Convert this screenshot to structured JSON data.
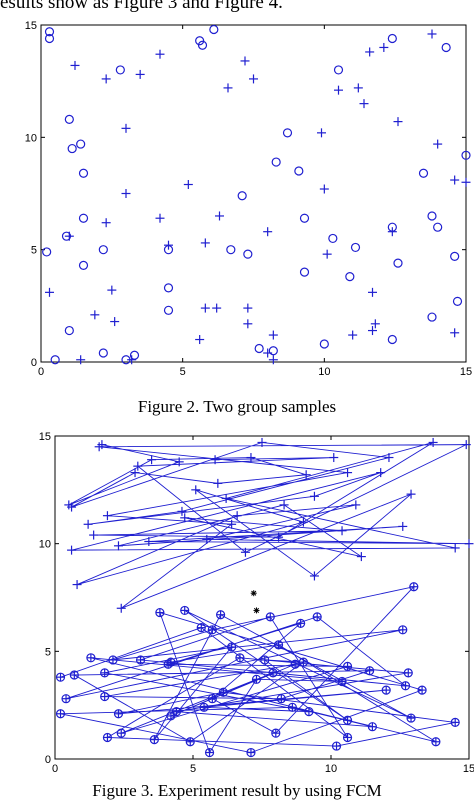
{
  "header_fragment": "esults show as Figure 3 and Figure 4.",
  "figure2": {
    "caption": "Figure 2. Two group samples"
  },
  "figure3": {
    "caption": "Figure 3. Experiment result by using FCM"
  },
  "chart_data": [
    {
      "type": "scatter",
      "title": "",
      "xlabel": "",
      "ylabel": "",
      "xlim": [
        0,
        15
      ],
      "ylim": [
        0,
        15
      ],
      "xticks": [
        "0",
        "5",
        "10",
        "15"
      ],
      "yticks": [
        "0",
        "5",
        "10",
        "15"
      ],
      "series": [
        {
          "marker": "circle",
          "color": "#1f1fd0",
          "points": [
            [
              0.3,
              14.7
            ],
            [
              0.3,
              14.4
            ],
            [
              5.6,
              14.3
            ],
            [
              5.7,
              14.1
            ],
            [
              6.1,
              14.8
            ],
            [
              2.8,
              13.0
            ],
            [
              10.5,
              13.0
            ],
            [
              12.4,
              14.4
            ],
            [
              14.3,
              14.0
            ],
            [
              1.0,
              10.8
            ],
            [
              1.1,
              9.5
            ],
            [
              1.4,
              9.7
            ],
            [
              1.5,
              8.4
            ],
            [
              8.3,
              8.9
            ],
            [
              8.7,
              10.2
            ],
            [
              9.1,
              8.5
            ],
            [
              9.3,
              6.4
            ],
            [
              9.3,
              4.0
            ],
            [
              13.5,
              8.4
            ],
            [
              14.0,
              6.0
            ],
            [
              13.8,
              6.5
            ],
            [
              15.0,
              9.2
            ],
            [
              1.5,
              6.4
            ],
            [
              0.9,
              5.6
            ],
            [
              0.2,
              4.9
            ],
            [
              1.5,
              4.3
            ],
            [
              7.1,
              7.4
            ],
            [
              7.3,
              4.8
            ],
            [
              4.5,
              5.0
            ],
            [
              4.5,
              3.3
            ],
            [
              4.5,
              2.3
            ],
            [
              6.7,
              5.0
            ],
            [
              2.2,
              5.0
            ],
            [
              2.2,
              0.4
            ],
            [
              3.0,
              0.1
            ],
            [
              3.3,
              0.3
            ],
            [
              0.5,
              0.1
            ],
            [
              1.0,
              1.4
            ],
            [
              7.7,
              0.6
            ],
            [
              8.2,
              0.5
            ],
            [
              10.0,
              0.8
            ],
            [
              10.3,
              5.5
            ],
            [
              10.9,
              3.8
            ],
            [
              11.1,
              5.1
            ],
            [
              12.4,
              6.0
            ],
            [
              12.6,
              4.4
            ],
            [
              12.4,
              1.0
            ],
            [
              13.8,
              2.0
            ],
            [
              14.6,
              4.7
            ],
            [
              14.7,
              2.7
            ]
          ]
        },
        {
          "marker": "plus",
          "color": "#1f1fd0",
          "points": [
            [
              1.2,
              13.2
            ],
            [
              2.3,
              12.6
            ],
            [
              3.5,
              12.8
            ],
            [
              4.2,
              13.7
            ],
            [
              7.2,
              13.4
            ],
            [
              7.5,
              12.6
            ],
            [
              6.6,
              12.2
            ],
            [
              10.5,
              12.1
            ],
            [
              11.2,
              12.2
            ],
            [
              11.4,
              11.5
            ],
            [
              11.6,
              13.8
            ],
            [
              12.1,
              14.0
            ],
            [
              13.8,
              14.6
            ],
            [
              3.0,
              10.4
            ],
            [
              9.9,
              10.2
            ],
            [
              10.0,
              7.7
            ],
            [
              12.6,
              10.7
            ],
            [
              14.0,
              9.7
            ],
            [
              14.6,
              8.1
            ],
            [
              15.0,
              8.0
            ],
            [
              3.0,
              7.5
            ],
            [
              4.2,
              6.4
            ],
            [
              6.3,
              6.5
            ],
            [
              5.2,
              7.9
            ],
            [
              2.3,
              6.2
            ],
            [
              1.0,
              5.6
            ],
            [
              4.5,
              5.2
            ],
            [
              5.8,
              5.3
            ],
            [
              8.0,
              5.8
            ],
            [
              10.1,
              4.8
            ],
            [
              12.4,
              5.8
            ],
            [
              0.3,
              3.1
            ],
            [
              2.5,
              3.2
            ],
            [
              1.9,
              2.1
            ],
            [
              2.6,
              1.8
            ],
            [
              5.8,
              2.4
            ],
            [
              6.2,
              2.4
            ],
            [
              7.3,
              2.4
            ],
            [
              7.3,
              1.7
            ],
            [
              8.2,
              1.2
            ],
            [
              5.6,
              1.0
            ],
            [
              8.0,
              0.4
            ],
            [
              8.2,
              0.1
            ],
            [
              3.2,
              0.1
            ],
            [
              1.4,
              0.1
            ],
            [
              11.0,
              1.2
            ],
            [
              11.7,
              1.4
            ],
            [
              11.8,
              1.7
            ],
            [
              11.7,
              3.1
            ],
            [
              14.6,
              1.3
            ]
          ]
        }
      ]
    },
    {
      "type": "line",
      "title": "",
      "xlabel": "",
      "ylabel": "",
      "xlim": [
        0,
        15
      ],
      "ylim": [
        0,
        15
      ],
      "xticks": [
        "0",
        "5",
        "10",
        "15"
      ],
      "yticks": [
        "0",
        "5",
        "10",
        "15"
      ],
      "centers": [
        [
          7.2,
          7.7
        ],
        [
          7.3,
          6.9
        ]
      ],
      "series": [
        {
          "marker": "plus",
          "color": "#1f1fd0",
          "path": [
            [
              1.7,
              14.6
            ],
            [
              4.5,
              13.8
            ],
            [
              0.5,
              11.8
            ],
            [
              3.5,
              13.9
            ],
            [
              7.1,
              14.0
            ],
            [
              9.1,
              13.2
            ],
            [
              5.9,
              12.8
            ],
            [
              2.9,
              13.3
            ],
            [
              0.6,
              11.7
            ],
            [
              7.5,
              14.7
            ],
            [
              12.1,
              14.0
            ],
            [
              4.6,
              11.5
            ],
            [
              1.2,
              10.9
            ],
            [
              9.4,
              12.2
            ],
            [
              11.8,
              13.3
            ],
            [
              0.6,
              9.7
            ],
            [
              14.5,
              9.8
            ],
            [
              6.2,
              12.1
            ],
            [
              13.7,
              14.7
            ],
            [
              8.1,
              10.3
            ],
            [
              1.4,
              10.4
            ],
            [
              10.4,
              10.6
            ],
            [
              4.7,
              11.2
            ],
            [
              11.1,
              9.4
            ],
            [
              8.3,
              11.8
            ],
            [
              2.3,
              9.9
            ],
            [
              12.6,
              10.8
            ],
            [
              3.4,
              10.1
            ],
            [
              15.0,
              10.0
            ],
            [
              5.5,
              10.2
            ],
            [
              10.9,
              11.8
            ],
            [
              6.6,
              11.3
            ],
            [
              0.8,
              8.1
            ],
            [
              9.0,
              11.0
            ],
            [
              5.1,
              12.5
            ],
            [
              9.4,
              8.5
            ],
            [
              12.9,
              12.3
            ],
            [
              2.4,
              7.0
            ],
            [
              6.4,
              10.9
            ],
            [
              1.9,
              11.3
            ],
            [
              10.6,
              13.3
            ],
            [
              1.6,
              14.5
            ],
            [
              14.9,
              14.6
            ],
            [
              6.9,
              9.6
            ],
            [
              3.0,
              13.6
            ],
            [
              10.1,
              14.0
            ],
            [
              5.8,
              13.9
            ]
          ]
        },
        {
          "marker": "circle-plus",
          "color": "#1f1fd0",
          "path": [
            [
              0.2,
              3.8
            ],
            [
              5.3,
              6.1
            ],
            [
              10.6,
              1.0
            ],
            [
              7.8,
              6.6
            ],
            [
              3.1,
              4.6
            ],
            [
              12.7,
              3.4
            ],
            [
              9.5,
              6.6
            ],
            [
              0.4,
              2.8
            ],
            [
              12.6,
              6.0
            ],
            [
              2.1,
              4.6
            ],
            [
              5.7,
              6.0
            ],
            [
              13.0,
              8.0
            ],
            [
              8.0,
              1.2
            ],
            [
              5.7,
              2.8
            ],
            [
              8.9,
              6.3
            ],
            [
              4.1,
              4.4
            ],
            [
              10.6,
              4.3
            ],
            [
              2.4,
              1.2
            ],
            [
              7.9,
              4.0
            ],
            [
              4.2,
              2.0
            ],
            [
              8.7,
              4.4
            ],
            [
              1.8,
              2.9
            ],
            [
              8.2,
              2.8
            ],
            [
              11.4,
              4.1
            ],
            [
              0.7,
              3.9
            ],
            [
              4.9,
              0.8
            ],
            [
              9.0,
              4.5
            ],
            [
              7.6,
              4.6
            ],
            [
              10.6,
              1.8
            ],
            [
              4.7,
              6.9
            ],
            [
              12.9,
              1.9
            ],
            [
              6.0,
              6.7
            ],
            [
              3.6,
              0.9
            ],
            [
              6.4,
              5.2
            ],
            [
              1.8,
              4.0
            ],
            [
              9.2,
              2.2
            ],
            [
              5.4,
              2.4
            ],
            [
              12.0,
              3.2
            ],
            [
              2.3,
              2.1
            ],
            [
              6.1,
              3.1
            ],
            [
              14.5,
              1.7
            ],
            [
              10.2,
              0.6
            ],
            [
              1.9,
              1.0
            ],
            [
              6.7,
              4.7
            ],
            [
              12.8,
              4.0
            ],
            [
              4.4,
              2.2
            ],
            [
              11.5,
              1.5
            ],
            [
              8.6,
              2.4
            ],
            [
              0.2,
              2.1
            ],
            [
              7.1,
              0.3
            ],
            [
              13.3,
              3.2
            ],
            [
              3.8,
              6.8
            ],
            [
              5.6,
              0.3
            ],
            [
              7.3,
              3.7
            ],
            [
              10.4,
              3.6
            ],
            [
              1.3,
              4.7
            ],
            [
              13.8,
              0.8
            ],
            [
              8.1,
              5.3
            ],
            [
              4.2,
              4.5
            ]
          ]
        }
      ]
    }
  ]
}
